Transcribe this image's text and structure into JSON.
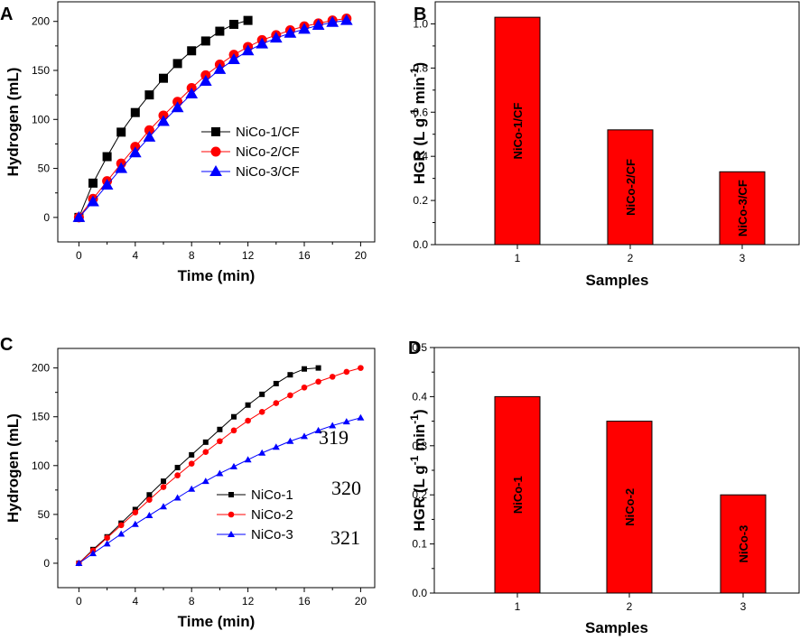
{
  "colors": {
    "black": "#000000",
    "red": "#ff0000",
    "blue": "#0000ff",
    "bar_fill": "#ff0000",
    "bar_stroke": "#000000"
  },
  "panels": {
    "A": {
      "letter": "A"
    },
    "B": {
      "letter": "B"
    },
    "C": {
      "letter": "C"
    },
    "D": {
      "letter": "D"
    }
  },
  "annotations": [
    "319",
    "320",
    "321"
  ],
  "chart_data": [
    {
      "panel": "A",
      "type": "line",
      "title": "",
      "xlabel": "Time (min)",
      "ylabel": "Hydrogen (mL)",
      "xlim": [
        -1.5,
        21
      ],
      "ylim": [
        -25,
        220
      ],
      "xticks": [
        0,
        4,
        8,
        12,
        16,
        20
      ],
      "yticks": [
        0,
        50,
        100,
        150,
        200
      ],
      "legend_position": "center-right",
      "series": [
        {
          "name": "NiCo-1/CF",
          "color": "#000000",
          "marker": "square",
          "x": [
            0,
            1,
            2,
            3,
            4,
            5,
            6,
            7,
            8,
            9,
            10,
            11,
            12
          ],
          "y": [
            0,
            35,
            62,
            87,
            107,
            125,
            142,
            157,
            170,
            180,
            190,
            197,
            201
          ]
        },
        {
          "name": "NiCo-2/CF",
          "color": "#ff0000",
          "marker": "circle",
          "x": [
            0,
            1,
            2,
            3,
            4,
            5,
            6,
            7,
            8,
            9,
            10,
            11,
            12,
            13,
            14,
            15,
            16,
            17,
            18,
            19
          ],
          "y": [
            0,
            19,
            37,
            55,
            72,
            89,
            104,
            118,
            132,
            145,
            156,
            166,
            174,
            181,
            186,
            191,
            195,
            198,
            201,
            203
          ]
        },
        {
          "name": "NiCo-3/CF",
          "color": "#0000ff",
          "marker": "triangle",
          "x": [
            0,
            1,
            2,
            3,
            4,
            5,
            6,
            7,
            8,
            9,
            10,
            11,
            12,
            13,
            14,
            15,
            16,
            17,
            18,
            19
          ],
          "y": [
            0,
            16,
            33,
            50,
            66,
            82,
            98,
            112,
            126,
            139,
            151,
            161,
            170,
            177,
            183,
            188,
            192,
            196,
            199,
            201
          ]
        }
      ]
    },
    {
      "panel": "B",
      "type": "bar",
      "title": "",
      "xlabel": "Samples",
      "ylabel": "HGR (L g-1 min-1)",
      "categories": [
        "1",
        "2",
        "3"
      ],
      "values": [
        1.03,
        0.52,
        0.33
      ],
      "bar_labels": [
        "NiCo-1/CF",
        "NiCo-2/CF",
        "NiCo-3/CF"
      ],
      "ylim": [
        0,
        1.1
      ],
      "yticks": [
        "0.0",
        "0.2",
        "0.4",
        "0.6",
        "0.8",
        "1.0"
      ]
    },
    {
      "panel": "C",
      "type": "line",
      "title": "",
      "xlabel": "Time (min)",
      "ylabel": "Hydrogen (mL)",
      "xlim": [
        -1.5,
        21
      ],
      "ylim": [
        -25,
        220
      ],
      "xticks": [
        0,
        4,
        8,
        12,
        16,
        20
      ],
      "yticks": [
        0,
        50,
        100,
        150,
        200
      ],
      "legend_position": "center-left",
      "series": [
        {
          "name": "NiCo-1",
          "color": "#000000",
          "marker": "square",
          "x": [
            0,
            1,
            2,
            3,
            4,
            5,
            6,
            7,
            8,
            9,
            10,
            11,
            12,
            13,
            14,
            15,
            16,
            17
          ],
          "y": [
            0,
            14,
            27,
            41,
            55,
            70,
            84,
            98,
            111,
            124,
            137,
            150,
            162,
            173,
            184,
            193,
            199,
            200
          ]
        },
        {
          "name": "NiCo-2",
          "color": "#ff0000",
          "marker": "circle",
          "x": [
            0,
            1,
            2,
            3,
            4,
            5,
            6,
            7,
            8,
            9,
            10,
            11,
            12,
            13,
            14,
            15,
            16,
            17,
            18,
            19,
            20
          ],
          "y": [
            0,
            13,
            26,
            39,
            52,
            65,
            78,
            90,
            102,
            114,
            125,
            136,
            146,
            155,
            164,
            172,
            180,
            186,
            191,
            196,
            200
          ]
        },
        {
          "name": "NiCo-3",
          "color": "#0000ff",
          "marker": "triangle",
          "x": [
            0,
            1,
            2,
            3,
            4,
            5,
            6,
            7,
            8,
            9,
            10,
            11,
            12,
            13,
            14,
            15,
            16,
            17,
            18,
            19,
            20
          ],
          "y": [
            0,
            10,
            20,
            30,
            40,
            49,
            58,
            67,
            76,
            84,
            92,
            99,
            106,
            113,
            119,
            125,
            130,
            136,
            141,
            145,
            149
          ]
        }
      ]
    },
    {
      "panel": "D",
      "type": "bar",
      "title": "",
      "xlabel": "Samples",
      "ylabel": "HGR (L g-1 min-1)",
      "categories": [
        "1",
        "2",
        "3"
      ],
      "values": [
        0.4,
        0.35,
        0.2
      ],
      "bar_labels": [
        "NiCo-1",
        "NiCo-2",
        "NiCo-3"
      ],
      "ylim": [
        0,
        0.5
      ],
      "yticks": [
        "0.0",
        "0.1",
        "0.2",
        "0.3",
        "0.4",
        "0.5"
      ]
    }
  ]
}
